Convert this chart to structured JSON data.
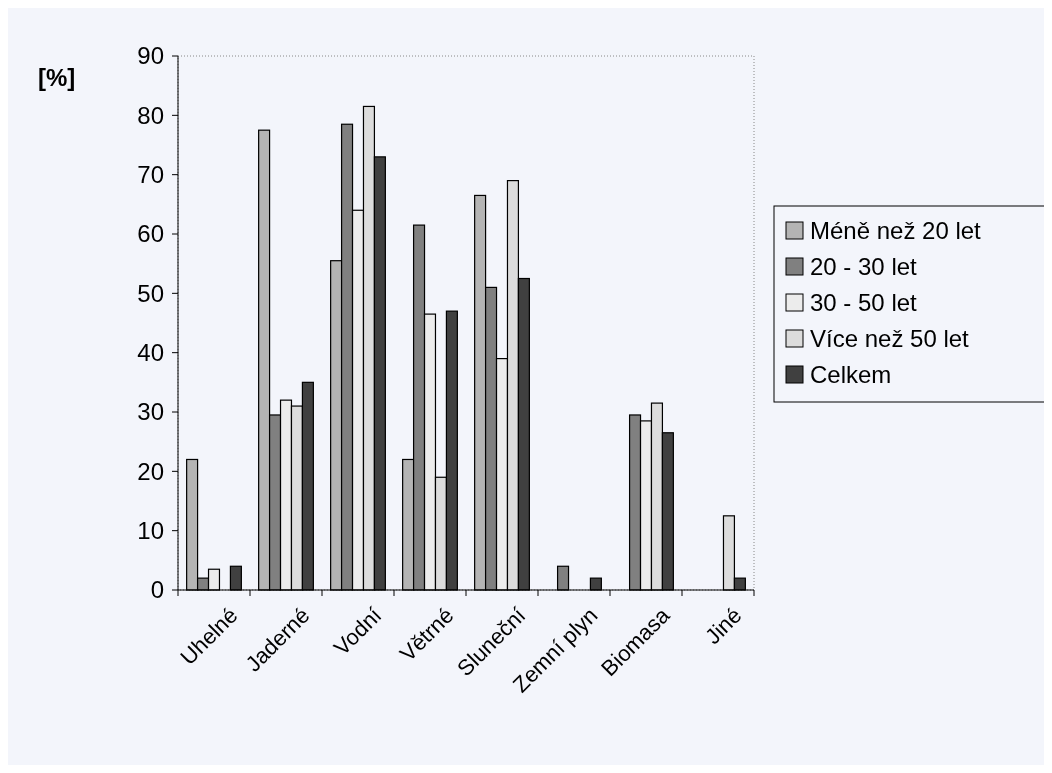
{
  "chart_data": {
    "type": "bar",
    "ylabel": "[%]",
    "categories": [
      "Uhelné",
      "Jaderné",
      "Vodní",
      "Větrné",
      "Sluneční",
      "Zemní plyn",
      "Biomasa",
      "Jiné"
    ],
    "series": [
      {
        "name": "Méně než 20 let",
        "color": "#b4b4b4",
        "values": [
          22,
          77.5,
          55.5,
          22,
          66.5,
          0,
          0,
          0
        ]
      },
      {
        "name": "20 - 30 let",
        "color": "#808080",
        "values": [
          2,
          29.5,
          78.5,
          61.5,
          51,
          4,
          29.5,
          0
        ]
      },
      {
        "name": "30 - 50 let",
        "color": "#ececec",
        "values": [
          3.5,
          32,
          64,
          46.5,
          39,
          0,
          28.5,
          0
        ]
      },
      {
        "name": "Více než 50 let",
        "color": "#dcdcdc",
        "values": [
          0,
          31,
          81.5,
          19,
          69,
          0,
          31.5,
          12.5
        ]
      },
      {
        "name": "Celkem",
        "color": "#404040",
        "values": [
          4,
          35,
          73,
          47,
          52.5,
          2,
          26.5,
          2
        ]
      }
    ],
    "ylim": [
      0,
      90
    ],
    "yticks": [
      0,
      10,
      20,
      30,
      40,
      50,
      60,
      70,
      80,
      90
    ],
    "grid": false,
    "legend": "right"
  }
}
